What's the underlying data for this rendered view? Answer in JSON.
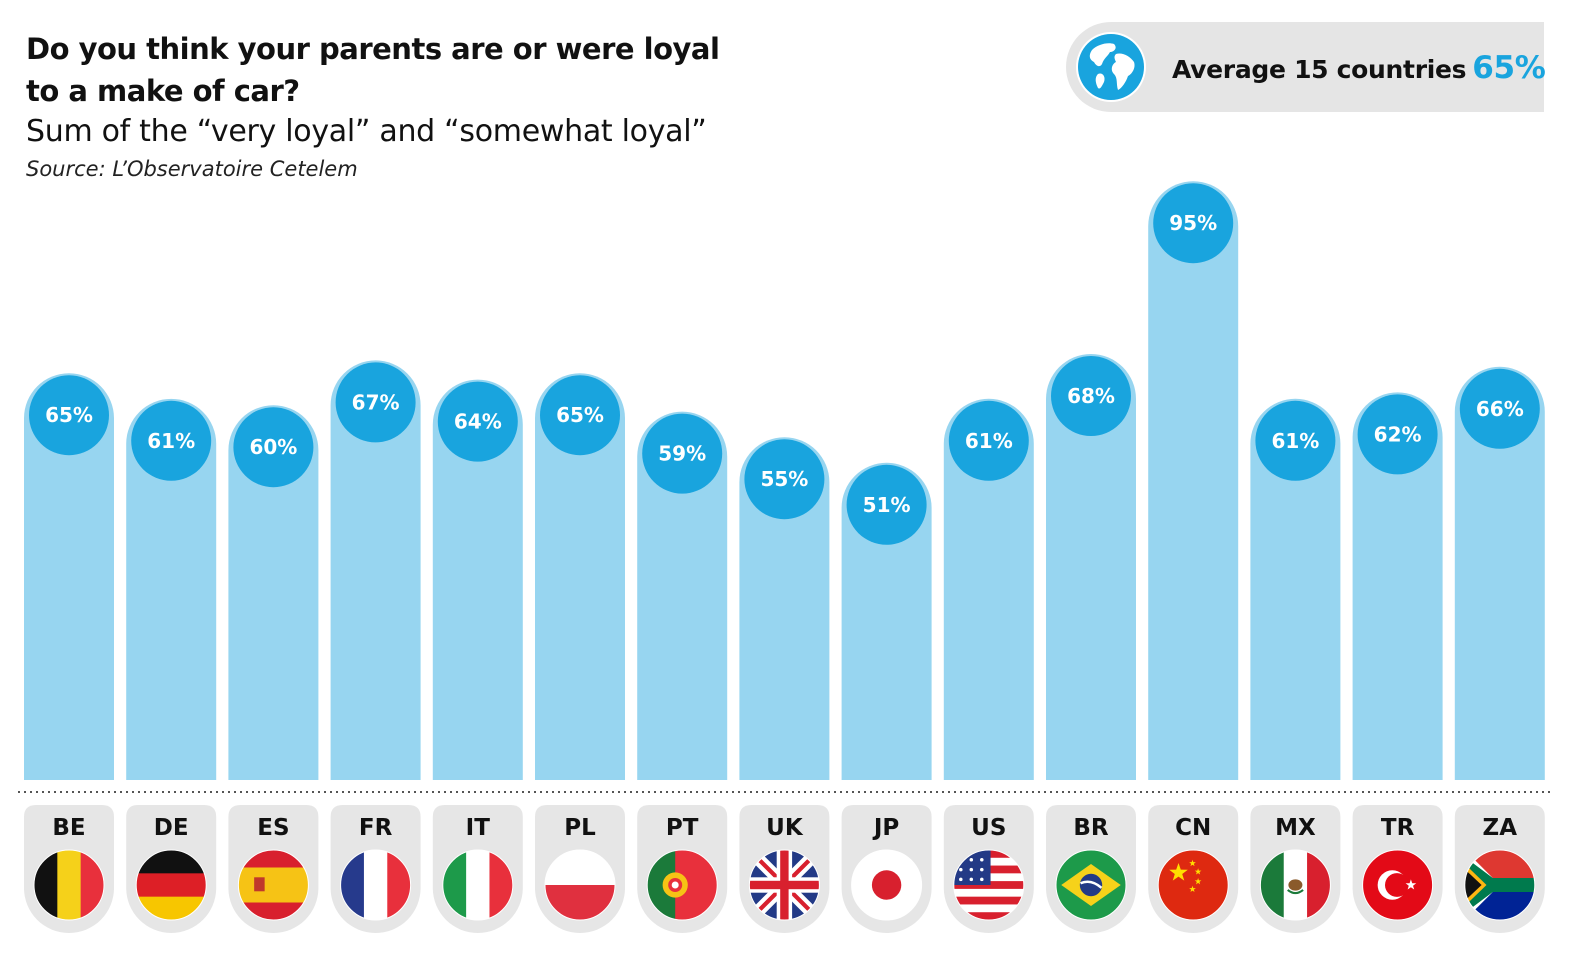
{
  "header": {
    "title": "Do you think your parents are or were loyal to a make of car?",
    "subtitle": "Sum of the “very loyal” and “somewhat loyal”",
    "source": "Source: L’Observatoire Cetelem"
  },
  "average": {
    "label": "Average 15 countries",
    "value": "65%",
    "icon": "globe-icon"
  },
  "colors": {
    "bar": "#97d5f0",
    "bubble": "#19a4de",
    "badge": "#e6e6e6"
  },
  "chart_data": {
    "type": "bar",
    "title": "Do you think your parents are or were loyal to a make of car?",
    "subtitle": "Sum of the “very loyal” and “somewhat loyal”",
    "ylabel": "",
    "xlabel": "",
    "ylim": [
      0,
      100
    ],
    "unit": "%",
    "categories": [
      "BE",
      "DE",
      "ES",
      "FR",
      "IT",
      "PL",
      "PT",
      "UK",
      "JP",
      "US",
      "BR",
      "CN",
      "MX",
      "TR",
      "ZA"
    ],
    "values": [
      65,
      61,
      60,
      67,
      64,
      65,
      59,
      55,
      51,
      61,
      68,
      95,
      61,
      62,
      66
    ],
    "data_labels": [
      "65%",
      "61%",
      "60%",
      "67%",
      "64%",
      "65%",
      "59%",
      "55%",
      "51%",
      "61%",
      "68%",
      "95%",
      "61%",
      "62%",
      "66%"
    ],
    "flags": [
      "belgium-flag-icon",
      "germany-flag-icon",
      "spain-flag-icon",
      "france-flag-icon",
      "italy-flag-icon",
      "poland-flag-icon",
      "portugal-flag-icon",
      "uk-flag-icon",
      "japan-flag-icon",
      "usa-flag-icon",
      "brazil-flag-icon",
      "china-flag-icon",
      "mexico-flag-icon",
      "turkey-flag-icon",
      "south-africa-flag-icon"
    ]
  }
}
